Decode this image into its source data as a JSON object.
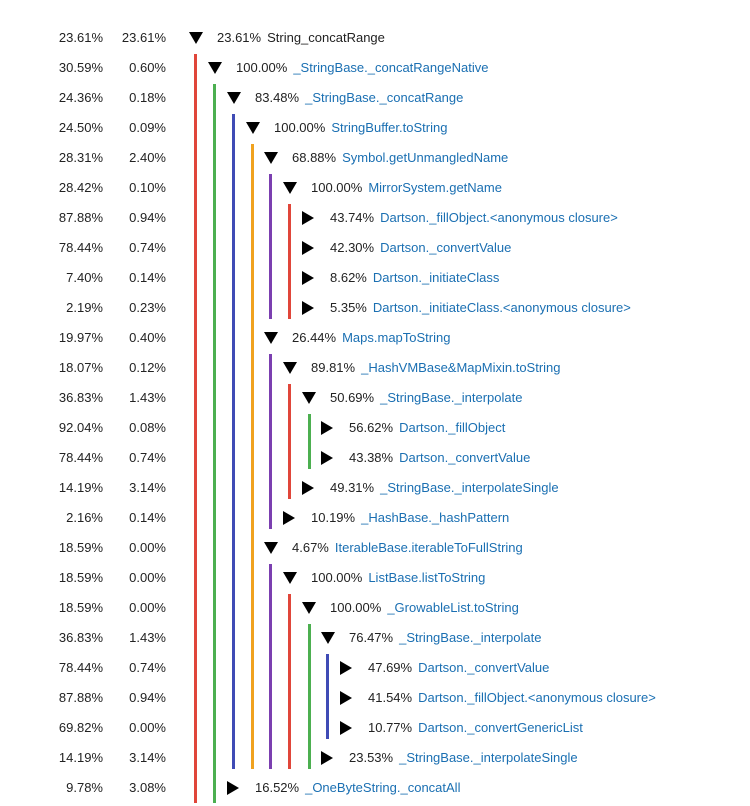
{
  "colors": {
    "function_link": "#1a6fb2",
    "text": "#222222",
    "depth_lines": [
      "#e0463a",
      "#4caf50",
      "#3f4bb5",
      "#f0a21f",
      "#7b3fb0"
    ]
  },
  "rows": [
    {
      "inclusive": "23.61%",
      "self": "23.61%",
      "expanded": true,
      "share": "23.61%",
      "name": "String_concatRange",
      "link": false
    },
    {
      "inclusive": "30.59%",
      "self": "0.60%",
      "expanded": true,
      "share": "100.00%",
      "name": "_StringBase._concatRangeNative",
      "link": true
    },
    {
      "inclusive": "24.36%",
      "self": "0.18%",
      "expanded": true,
      "share": "83.48%",
      "name": "_StringBase._concatRange",
      "link": true
    },
    {
      "inclusive": "24.50%",
      "self": "0.09%",
      "expanded": true,
      "share": "100.00%",
      "name": "StringBuffer.toString",
      "link": true
    },
    {
      "inclusive": "28.31%",
      "self": "2.40%",
      "expanded": true,
      "share": "68.88%",
      "name": "Symbol.getUnmangledName",
      "link": true
    },
    {
      "inclusive": "28.42%",
      "self": "0.10%",
      "expanded": true,
      "share": "100.00%",
      "name": "MirrorSystem.getName",
      "link": true
    },
    {
      "inclusive": "87.88%",
      "self": "0.94%",
      "expanded": false,
      "share": "43.74%",
      "name": "Dartson._fillObject.<anonymous closure>",
      "link": true
    },
    {
      "inclusive": "78.44%",
      "self": "0.74%",
      "expanded": false,
      "share": "42.30%",
      "name": "Dartson._convertValue",
      "link": true
    },
    {
      "inclusive": "7.40%",
      "self": "0.14%",
      "expanded": false,
      "share": "8.62%",
      "name": "Dartson._initiateClass",
      "link": true
    },
    {
      "inclusive": "2.19%",
      "self": "0.23%",
      "expanded": false,
      "share": "5.35%",
      "name": "Dartson._initiateClass.<anonymous closure>",
      "link": true
    },
    {
      "inclusive": "19.97%",
      "self": "0.40%",
      "expanded": true,
      "share": "26.44%",
      "name": "Maps.mapToString",
      "link": true
    },
    {
      "inclusive": "18.07%",
      "self": "0.12%",
      "expanded": true,
      "share": "89.81%",
      "name": "_HashVMBase&MapMixin.toString",
      "link": true
    },
    {
      "inclusive": "36.83%",
      "self": "1.43%",
      "expanded": true,
      "share": "50.69%",
      "name": "_StringBase._interpolate",
      "link": true
    },
    {
      "inclusive": "92.04%",
      "self": "0.08%",
      "expanded": false,
      "share": "56.62%",
      "name": "Dartson._fillObject",
      "link": true
    },
    {
      "inclusive": "78.44%",
      "self": "0.74%",
      "expanded": false,
      "share": "43.38%",
      "name": "Dartson._convertValue",
      "link": true
    },
    {
      "inclusive": "14.19%",
      "self": "3.14%",
      "expanded": false,
      "share": "49.31%",
      "name": "_StringBase._interpolateSingle",
      "link": true
    },
    {
      "inclusive": "2.16%",
      "self": "0.14%",
      "expanded": false,
      "share": "10.19%",
      "name": "_HashBase._hashPattern",
      "link": true
    },
    {
      "inclusive": "18.59%",
      "self": "0.00%",
      "expanded": true,
      "share": "4.67%",
      "name": "IterableBase.iterableToFullString",
      "link": true
    },
    {
      "inclusive": "18.59%",
      "self": "0.00%",
      "expanded": true,
      "share": "100.00%",
      "name": "ListBase.listToString",
      "link": true
    },
    {
      "inclusive": "18.59%",
      "self": "0.00%",
      "expanded": true,
      "share": "100.00%",
      "name": "_GrowableList.toString",
      "link": true
    },
    {
      "inclusive": "36.83%",
      "self": "1.43%",
      "expanded": true,
      "share": "76.47%",
      "name": "_StringBase._interpolate",
      "link": true
    },
    {
      "inclusive": "78.44%",
      "self": "0.74%",
      "expanded": false,
      "share": "47.69%",
      "name": "Dartson._convertValue",
      "link": true
    },
    {
      "inclusive": "87.88%",
      "self": "0.94%",
      "expanded": false,
      "share": "41.54%",
      "name": "Dartson._fillObject.<anonymous closure>",
      "link": true
    },
    {
      "inclusive": "69.82%",
      "self": "0.00%",
      "expanded": false,
      "share": "10.77%",
      "name": "Dartson._convertGenericList",
      "link": true
    },
    {
      "inclusive": "14.19%",
      "self": "3.14%",
      "expanded": false,
      "share": "23.53%",
      "name": "_StringBase._interpolateSingle",
      "link": true
    },
    {
      "inclusive": "9.78%",
      "self": "3.08%",
      "expanded": false,
      "share": "16.52%",
      "name": "_OneByteString._concatAll",
      "link": true
    }
  ]
}
